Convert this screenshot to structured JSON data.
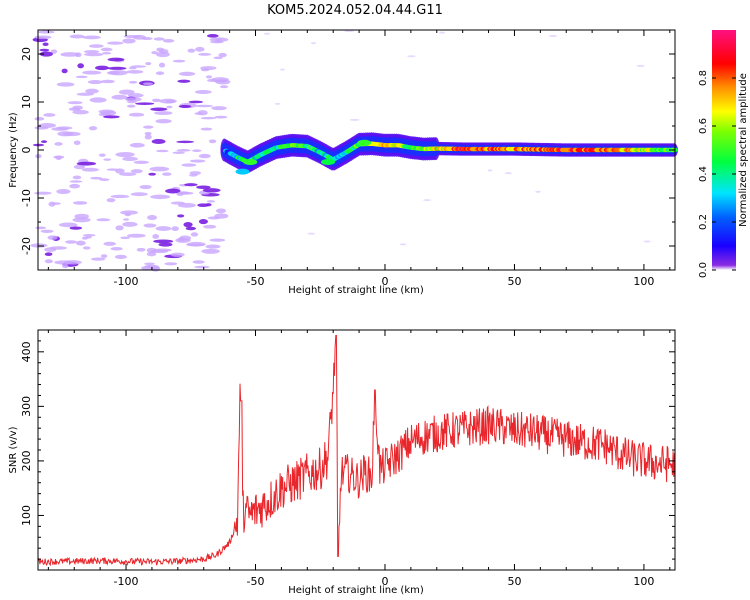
{
  "title": "KOM5.2024.052.04.44.G11",
  "chart_data": [
    {
      "type": "heatmap",
      "xlabel": "Height of straight line (km)",
      "ylabel": "Frequency (Hz)",
      "xlim": [
        -134,
        112
      ],
      "ylim": [
        -25,
        25
      ],
      "xticks": [
        -100,
        -50,
        0,
        50,
        100
      ],
      "yticks": [
        -20,
        -10,
        0,
        10,
        20
      ],
      "colorbar": {
        "label": "Normalized spectral amplitude",
        "range": [
          0,
          1
        ],
        "ticks": [
          "0.0",
          "0.2",
          "0.4",
          "0.6",
          "0.8"
        ]
      },
      "ridge": [
        {
          "x": -62,
          "y": 0.0,
          "amp": 0.2
        },
        {
          "x": -57,
          "y": -1.5,
          "amp": 0.35
        },
        {
          "x": -53,
          "y": -2.5,
          "amp": 0.45
        },
        {
          "x": -48,
          "y": -1.0,
          "amp": 0.35
        },
        {
          "x": -42,
          "y": 0.5,
          "amp": 0.4
        },
        {
          "x": -36,
          "y": 1.0,
          "amp": 0.5
        },
        {
          "x": -30,
          "y": 0.8,
          "amp": 0.45
        },
        {
          "x": -25,
          "y": -0.5,
          "amp": 0.35
        },
        {
          "x": -20,
          "y": -2.0,
          "amp": 0.4
        },
        {
          "x": -15,
          "y": -0.5,
          "amp": 0.35
        },
        {
          "x": -10,
          "y": 1.2,
          "amp": 0.5
        },
        {
          "x": -5,
          "y": 1.3,
          "amp": 0.55
        },
        {
          "x": 0,
          "y": 1.0,
          "amp": 0.75
        },
        {
          "x": 5,
          "y": 1.0,
          "amp": 0.6
        },
        {
          "x": 10,
          "y": 0.5,
          "amp": 0.5
        },
        {
          "x": 15,
          "y": 0.2,
          "amp": 0.55
        },
        {
          "x": 20,
          "y": 0.3,
          "amp": 0.65
        },
        {
          "x": 30,
          "y": 0.2,
          "amp": 0.85
        },
        {
          "x": 40,
          "y": 0.2,
          "amp": 0.8
        },
        {
          "x": 50,
          "y": 0.2,
          "amp": 0.75
        },
        {
          "x": 60,
          "y": 0.1,
          "amp": 0.8
        },
        {
          "x": 70,
          "y": 0.0,
          "amp": 0.85
        },
        {
          "x": 80,
          "y": 0.0,
          "amp": 0.8
        },
        {
          "x": 90,
          "y": 0.0,
          "amp": 0.75
        },
        {
          "x": 100,
          "y": 0.0,
          "amp": 0.6
        },
        {
          "x": 110,
          "y": 0.0,
          "amp": 0.5
        }
      ],
      "noise_x_range": [
        -134,
        -62
      ]
    },
    {
      "type": "line",
      "xlabel": "Height of straight line (km)",
      "ylabel": "SNR (v/v)",
      "xlim": [
        -134,
        112
      ],
      "ylim": [
        0,
        440
      ],
      "xticks": [
        -100,
        -50,
        0,
        50,
        100
      ],
      "yticks": [
        100,
        200,
        300,
        400
      ],
      "color": "#e8262b",
      "series": [
        {
          "x": [
            -134,
            -120,
            -110,
            -100,
            -90,
            -80,
            -70,
            -65,
            -60,
            -57,
            -56,
            -55,
            -52,
            -48,
            -44,
            -40,
            -35,
            -30,
            -25,
            -22,
            -20,
            -19,
            -18,
            -17,
            -15,
            -12,
            -10,
            -8,
            -5,
            -4,
            -2,
            0,
            5,
            10,
            15,
            20,
            25,
            30,
            35,
            40,
            45,
            50,
            55,
            60,
            65,
            70,
            75,
            80,
            85,
            90,
            95,
            100,
            105,
            110,
            112
          ],
          "y": [
            15,
            16,
            17,
            16,
            15,
            16,
            20,
            28,
            50,
            90,
            310,
            110,
            100,
            115,
            130,
            150,
            160,
            175,
            185,
            210,
            330,
            430,
            25,
            175,
            180,
            170,
            165,
            180,
            170,
            330,
            185,
            190,
            210,
            235,
            245,
            250,
            255,
            258,
            262,
            265,
            262,
            255,
            255,
            250,
            245,
            240,
            235,
            232,
            228,
            215,
            205,
            200,
            195,
            195,
            190
          ]
        }
      ]
    }
  ]
}
